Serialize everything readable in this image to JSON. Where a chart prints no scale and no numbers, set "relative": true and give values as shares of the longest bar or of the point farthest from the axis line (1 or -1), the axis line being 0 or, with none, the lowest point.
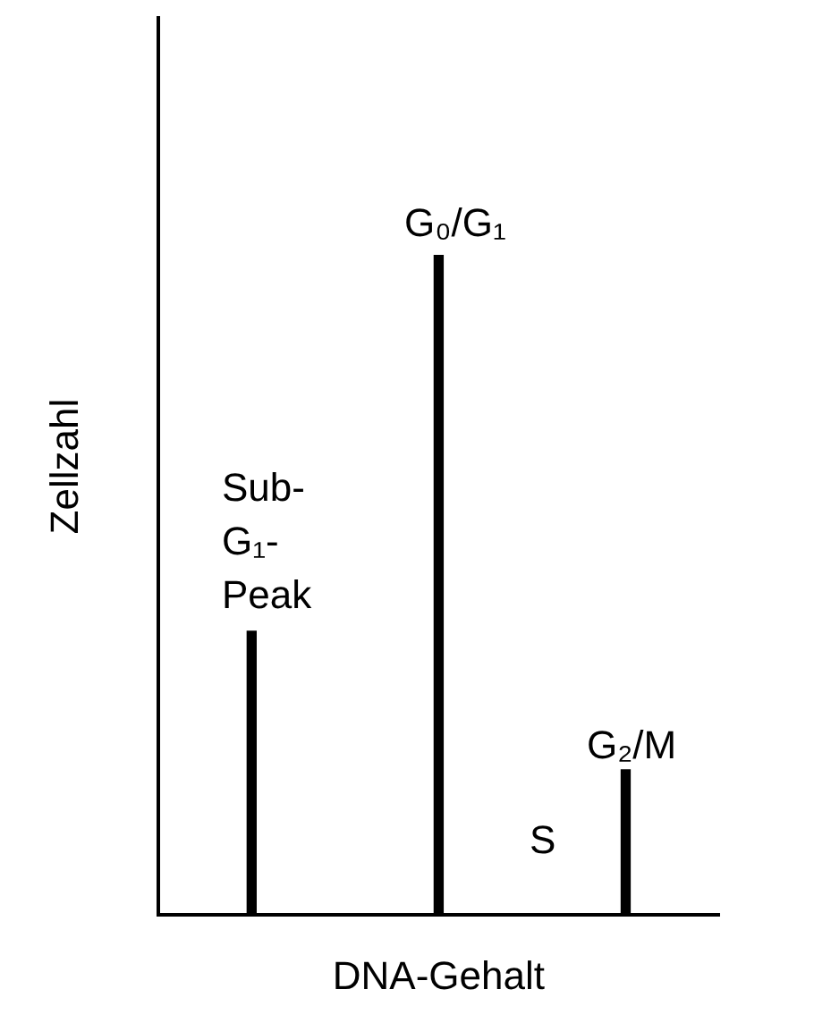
{
  "chart_data": {
    "type": "bar",
    "relative": true,
    "xlabel": "DNA-Gehalt",
    "ylabel": "Zellzahl",
    "categories": [
      null,
      null,
      null
    ],
    "values": [
      0.43,
      1,
      0.22
    ],
    "color": "#000000",
    "grid": false,
    "legend": false,
    "tick_labels": false,
    "annotations": [
      "Sub-G₁-Peak",
      "G₀/G₁",
      "S",
      "G₂/M"
    ]
  }
}
